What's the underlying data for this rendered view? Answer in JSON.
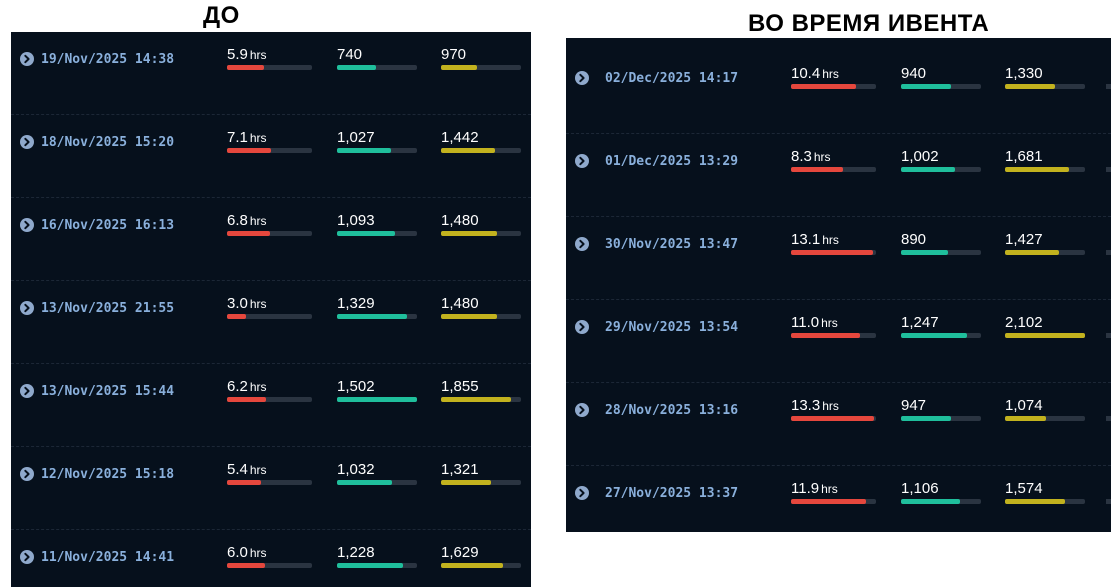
{
  "headings": {
    "before": "ДО",
    "event": "ВО ВРЕМЯ ИВЕНТА"
  },
  "colors": {
    "hours": "#e5473d",
    "second": "#1fbf9c",
    "third": "#c2b21e",
    "panel": "#06101c",
    "date": "#8ab0dc"
  },
  "icon": "chevron-right-circle-icon",
  "hours_unit": "hrs",
  "before": [
    {
      "date": "19/Nov/2025 14:38",
      "hours": "5.9",
      "hours_fill": 0.44,
      "v2": "740",
      "v2_fill": 0.49,
      "v3": "970",
      "v3_fill": 0.45
    },
    {
      "date": "18/Nov/2025 15:20",
      "hours": "7.1",
      "hours_fill": 0.52,
      "v2": "1,027",
      "v2_fill": 0.68,
      "v3": "1,442",
      "v3_fill": 0.68
    },
    {
      "date": "16/Nov/2025 16:13",
      "hours": "6.8",
      "hours_fill": 0.5,
      "v2": "1,093",
      "v2_fill": 0.73,
      "v3": "1,480",
      "v3_fill": 0.7
    },
    {
      "date": "13/Nov/2025 21:55",
      "hours": "3.0",
      "hours_fill": 0.22,
      "v2": "1,329",
      "v2_fill": 0.88,
      "v3": "1,480",
      "v3_fill": 0.7
    },
    {
      "date": "13/Nov/2025 15:44",
      "hours": "6.2",
      "hours_fill": 0.46,
      "v2": "1,502",
      "v2_fill": 1.0,
      "v3": "1,855",
      "v3_fill": 0.88
    },
    {
      "date": "12/Nov/2025 15:18",
      "hours": "5.4",
      "hours_fill": 0.4,
      "v2": "1,032",
      "v2_fill": 0.69,
      "v3": "1,321",
      "v3_fill": 0.63
    },
    {
      "date": "11/Nov/2025 14:41",
      "hours": "6.0",
      "hours_fill": 0.45,
      "v2": "1,228",
      "v2_fill": 0.82,
      "v3": "1,629",
      "v3_fill": 0.78
    }
  ],
  "event": [
    {
      "date": "02/Dec/2025 14:17",
      "hours": "10.4",
      "hours_fill": 0.77,
      "v2": "940",
      "v2_fill": 0.63,
      "v3": "1,330",
      "v3_fill": 0.63
    },
    {
      "date": "01/Dec/2025 13:29",
      "hours": "8.3",
      "hours_fill": 0.61,
      "v2": "1,002",
      "v2_fill": 0.67,
      "v3": "1,681",
      "v3_fill": 0.8
    },
    {
      "date": "30/Nov/2025 13:47",
      "hours": "13.1",
      "hours_fill": 0.97,
      "v2": "890",
      "v2_fill": 0.59,
      "v3": "1,427",
      "v3_fill": 0.68
    },
    {
      "date": "29/Nov/2025 13:54",
      "hours": "11.0",
      "hours_fill": 0.81,
      "v2": "1,247",
      "v2_fill": 0.83,
      "v3": "2,102",
      "v3_fill": 1.0
    },
    {
      "date": "28/Nov/2025 13:16",
      "hours": "13.3",
      "hours_fill": 0.98,
      "v2": "947",
      "v2_fill": 0.63,
      "v3": "1,074",
      "v3_fill": 0.51
    },
    {
      "date": "27/Nov/2025 13:37",
      "hours": "11.9",
      "hours_fill": 0.88,
      "v2": "1,106",
      "v2_fill": 0.74,
      "v3": "1,574",
      "v3_fill": 0.75
    }
  ]
}
